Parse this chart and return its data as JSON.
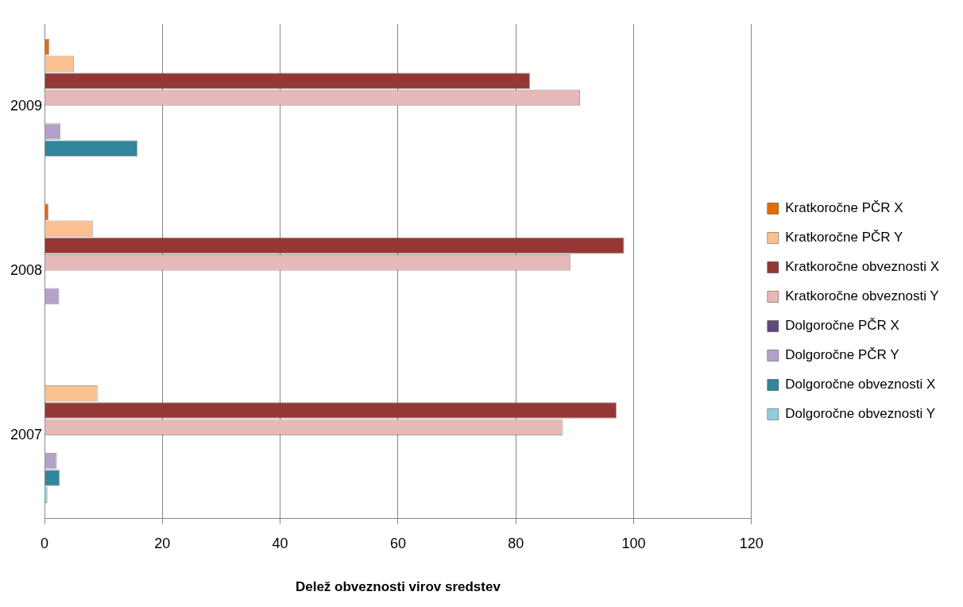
{
  "chart_data": {
    "type": "bar",
    "orientation": "horizontal",
    "xlabel": "Delež obveznosti virov sredstev",
    "categories": [
      "2009",
      "2008",
      "2007"
    ],
    "series": [
      {
        "name": "Kratkoročne PČR X",
        "color": "#e36c09",
        "values": [
          0.8,
          0.7,
          null
        ]
      },
      {
        "name": "Kratkoročne PČR Y",
        "color": "#fac090",
        "values": [
          5.0,
          8.2,
          9.0
        ]
      },
      {
        "name": "Kratkoročne obveznosti X",
        "color": "#953735",
        "values": [
          82.4,
          98.4,
          97.1
        ]
      },
      {
        "name": "Kratkoročne obveznosti Y",
        "color": "#e6b9b8",
        "values": [
          90.9,
          89.3,
          88.0
        ]
      },
      {
        "name": "Dolgoročne PČR X",
        "color": "#604a7b",
        "values": [
          null,
          null,
          null
        ]
      },
      {
        "name": "Dolgoročne PČR Y",
        "color": "#b3a2c7",
        "values": [
          2.7,
          2.5,
          2.1
        ]
      },
      {
        "name": "Dolgoročne obveznosti X",
        "color": "#31859c",
        "values": [
          15.8,
          null,
          2.6
        ]
      },
      {
        "name": "Dolgoročne obveznosti Y",
        "color": "#93cddd",
        "values": [
          null,
          null,
          0.5
        ]
      }
    ],
    "xlim": [
      0,
      120
    ],
    "xticks": [
      0,
      20,
      40,
      60,
      80,
      100,
      120
    ],
    "grid": "x",
    "legend": "right"
  }
}
